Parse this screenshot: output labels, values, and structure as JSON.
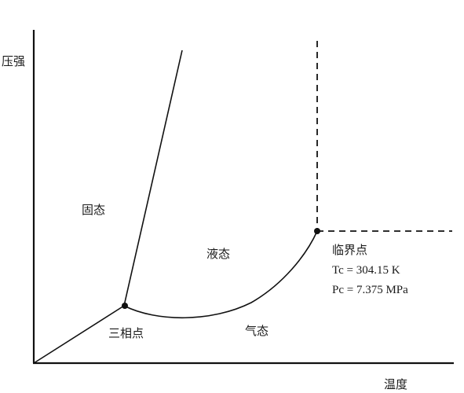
{
  "axes": {
    "y_label": "压强",
    "x_label": "温度"
  },
  "regions": {
    "solid": "固态",
    "liquid": "液态",
    "gas": "气态"
  },
  "points": {
    "triple_point": "三相点",
    "critical_point": "临界点",
    "critical_temperature": "Tc = 304.15 K",
    "critical_pressure": "Pc = 7.375 MPa"
  },
  "colors": {
    "line": "#111111",
    "background": "#ffffff"
  }
}
